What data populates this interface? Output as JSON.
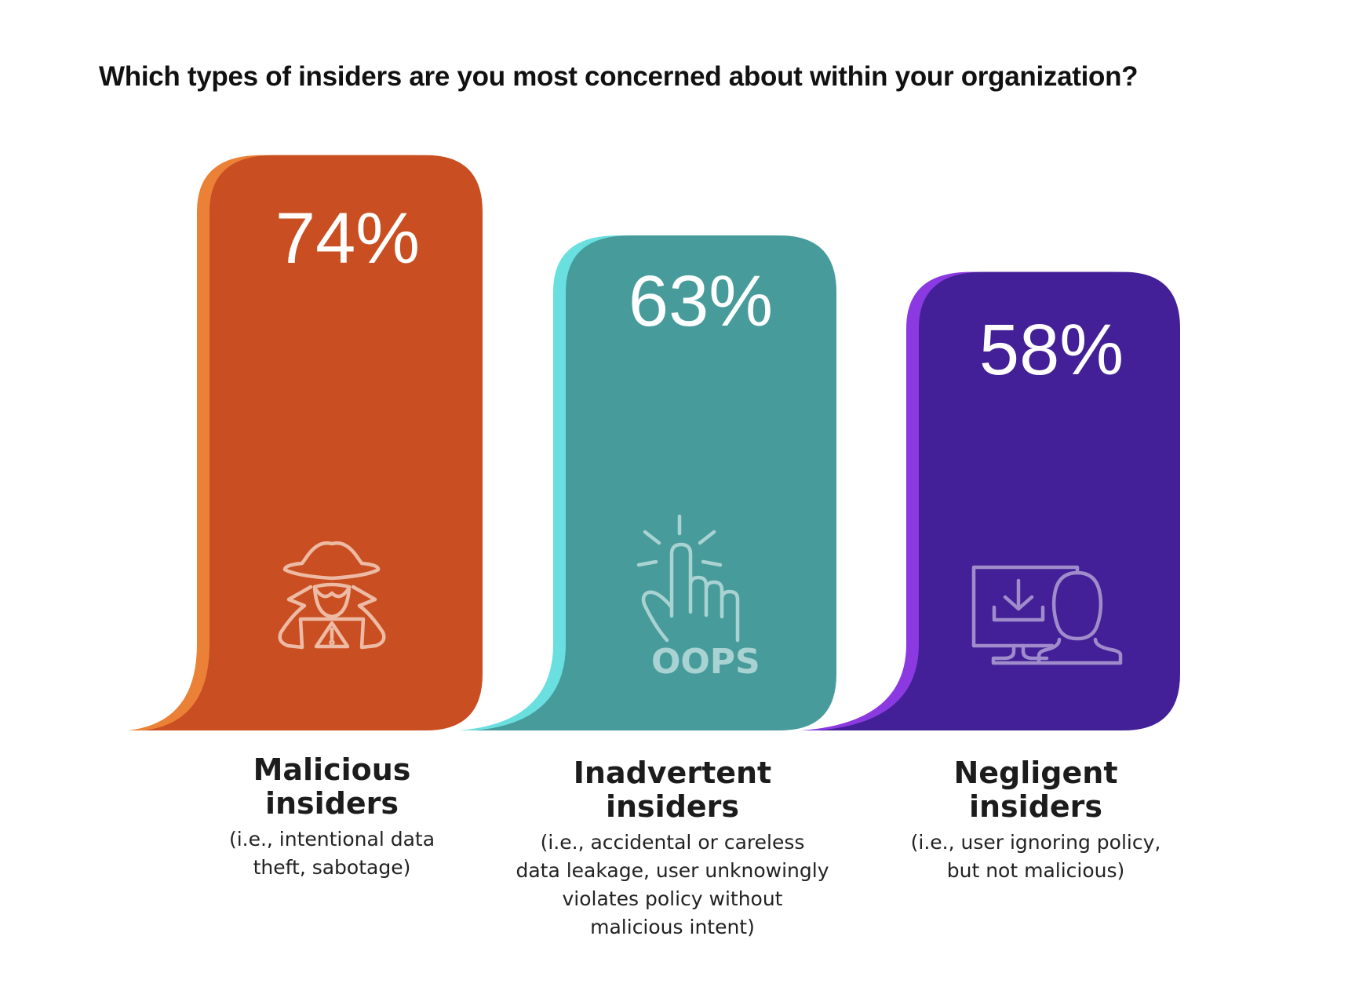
{
  "title": "Which types of insiders are you most concerned about within your organization?",
  "chart_data": {
    "type": "bar",
    "title": "Which types of insiders are you most concerned about within your organization?",
    "categories": [
      "Malicious insiders",
      "Inadvertent insiders",
      "Negligent insiders"
    ],
    "values": [
      74,
      63,
      58
    ],
    "value_labels": [
      "74%",
      "63%",
      "58%"
    ],
    "unit": "%",
    "grid": false,
    "bars": [
      {
        "name_line1": "Malicious",
        "name_line2": "insiders",
        "desc_lines": [
          "(i.e., intentional data",
          "theft, sabotage)"
        ],
        "color": "#C94F22",
        "edge_color": "#EB8136",
        "icon_color": "#EDBBA5",
        "icon": "spy-warning-icon"
      },
      {
        "name_line1": "Inadvertent",
        "name_line2": "insiders",
        "desc_lines": [
          "(i.e., accidental or careless",
          "data leakage, user unknowingly",
          "violates policy without",
          "malicious intent)"
        ],
        "color": "#479C9B",
        "edge_color": "#6ADFE0",
        "icon_color": "#A9D3D2",
        "icon": "pointing-hand-oops-icon",
        "icon_text": "OOPS!"
      },
      {
        "name_line1": "Negligent",
        "name_line2": "insiders",
        "desc_lines": [
          "(i.e., user ignoring policy,",
          "but not malicious)"
        ],
        "color": "#432097",
        "edge_color": "#8A3AE0",
        "icon_color": "#A08CCB",
        "icon": "user-download-monitor-icon"
      }
    ]
  }
}
